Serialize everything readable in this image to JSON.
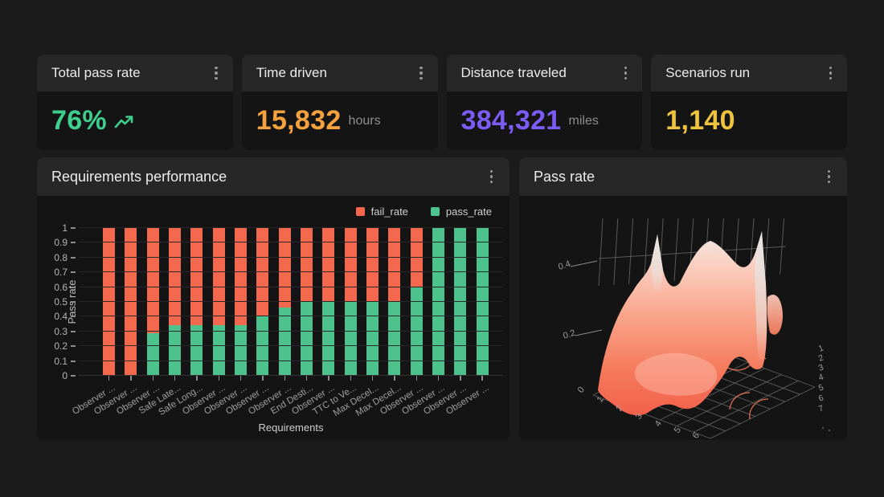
{
  "stat_cards": [
    {
      "title": "Total pass rate",
      "value": "76%",
      "unit": "",
      "value_color": "#3ecf8e",
      "icon": "trend-up-icon"
    },
    {
      "title": "Time driven",
      "value": "15,832",
      "unit": "hours",
      "value_color": "#f5a13d",
      "icon": null
    },
    {
      "title": "Distance traveled",
      "value": "384,321",
      "unit": "miles",
      "value_color": "#7b5cf5",
      "icon": null
    },
    {
      "title": "Scenarios run",
      "value": "1,140",
      "unit": "",
      "value_color": "#eec43f",
      "icon": null
    }
  ],
  "requirements_panel": {
    "title": "Requirements performance"
  },
  "surface_panel": {
    "title": "Pass rate"
  },
  "chart_data": [
    {
      "type": "bar",
      "stacked": true,
      "title": "Requirements performance",
      "xlabel": "Requirements",
      "ylabel": "Pass rate",
      "ylim": [
        0,
        1
      ],
      "grid": true,
      "legend_position": "top-right",
      "yticks": [
        "1",
        "0.9",
        "0.8",
        "0.7",
        "0.6",
        "0.5",
        "0.4",
        "0.3",
        "0.2",
        "0.1",
        "0"
      ],
      "categories": [
        "Observer ...",
        "Observer ...",
        "Observer ...",
        "Safe Late...",
        "Safe Long...",
        "Observer ...",
        "Observer ...",
        "Observer ...",
        "Observer ...",
        "End Desti...",
        "Observer ...",
        "TTC to Ve...",
        "Max Decel...",
        "Max Decel...",
        "Observer ...",
        "Observer ...",
        "Observer ...",
        "Observer ..."
      ],
      "series": [
        {
          "name": "fail_rate",
          "color": "#f4694d",
          "values": [
            1,
            1,
            0.71,
            0.66,
            0.66,
            0.66,
            0.66,
            0.59,
            0.54,
            0.5,
            0.5,
            0.5,
            0.5,
            0.5,
            0.4,
            0,
            0,
            0
          ]
        },
        {
          "name": "pass_rate",
          "color": "#4dc28c",
          "values": [
            0,
            0,
            0.29,
            0.34,
            0.34,
            0.34,
            0.34,
            0.41,
            0.46,
            0.5,
            0.5,
            0.5,
            0.5,
            0.5,
            0.6,
            1,
            1,
            1
          ]
        }
      ]
    },
    {
      "type": "surface",
      "title": "Pass rate",
      "xticks": [
        "0",
        "1",
        "2",
        "3",
        "4",
        "5",
        "6"
      ],
      "yticks": [
        "1",
        "2",
        "3",
        "4",
        "5",
        "6",
        "7"
      ],
      "zticks": [
        "0.2",
        "0.4"
      ],
      "zrange": [
        0,
        0.5
      ],
      "surface_colors": {
        "low": "#f3604b",
        "mid": "#f89677",
        "high": "#fbd0c2",
        "peak": "#f0e9e6"
      },
      "grid_color": "#6f6f6f",
      "contour_color": "#ee7757"
    }
  ]
}
